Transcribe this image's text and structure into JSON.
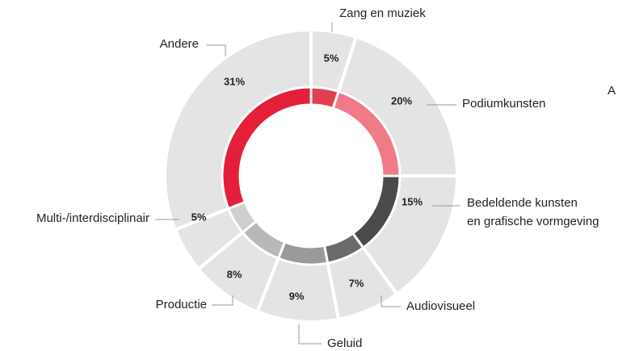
{
  "chart_data": {
    "type": "donut",
    "categories": [
      "Zang en muziek",
      "Podiumkunsten",
      "Bedeldende kunsten\nen grafische vormgeving",
      "Audiovisueel",
      "Geluid",
      "Productie",
      "Multi-/interdisciplinair",
      "Andere"
    ],
    "values": [
      5,
      20,
      15,
      7,
      9,
      8,
      5,
      31
    ],
    "value_labels": [
      "5%",
      "20%",
      "15%",
      "7%",
      "9%",
      "8%",
      "5%",
      "31%"
    ],
    "colors": [
      "#e2404f",
      "#f07a88",
      "#4a4a4a",
      "#6b6b6b",
      "#9a9a9a",
      "#b8b8b8",
      "#cfcfcf",
      "#e41f3a"
    ],
    "outer_color": "#e4e4e4",
    "annotations": [
      "A"
    ]
  }
}
